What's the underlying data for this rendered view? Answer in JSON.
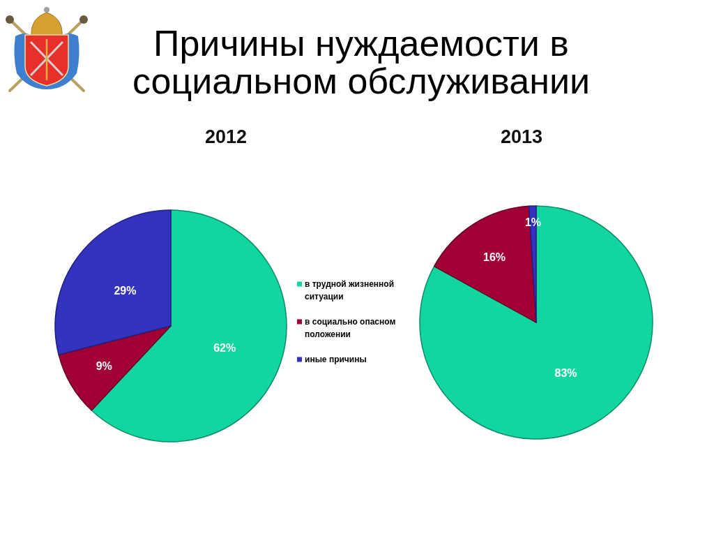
{
  "chart_data": {
    "type": "pie",
    "title": "Причины нуждаемости в социальном обслуживании",
    "categories": [
      "в трудной жизненной ситуации",
      "в социально опасном положении",
      "иные причины"
    ],
    "colors": [
      "#12d6a0",
      "#a00034",
      "#3333c0"
    ],
    "series": [
      {
        "name": "2012",
        "values": [
          62,
          9,
          29
        ],
        "value_labels": [
          "62%",
          "9%",
          "29%"
        ]
      },
      {
        "name": "2013",
        "values": [
          83,
          16,
          1
        ],
        "value_labels": [
          "83%",
          "16%",
          "1%"
        ]
      }
    ],
    "legend": "center"
  }
}
